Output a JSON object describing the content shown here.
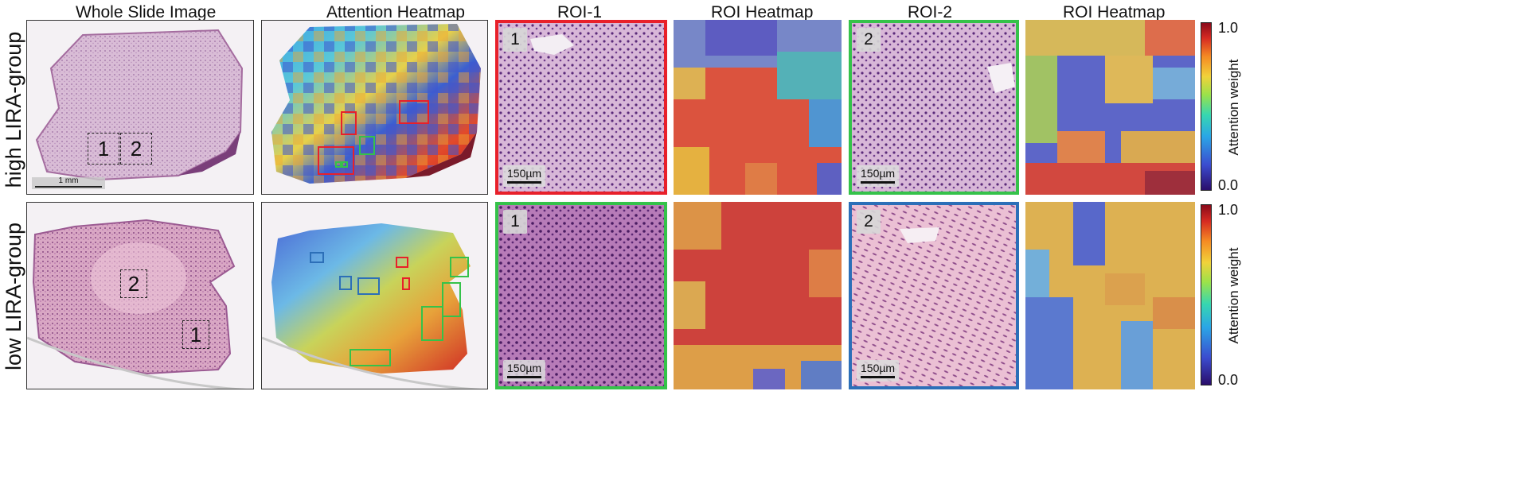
{
  "columns": [
    "Whole Slide Image",
    "Attention Heatmap",
    "ROI-1",
    "ROI Heatmap",
    "ROI-2",
    "ROI Heatmap"
  ],
  "rows": [
    {
      "label": "high LIRA-group",
      "wsi_scale": "1 mm",
      "roi1_num": "1",
      "roi2_num": "2",
      "roi1_scale": "150µm",
      "roi2_scale": "150µm",
      "box1": "1",
      "box2": "2"
    },
    {
      "label": "low LIRA-group",
      "roi1_num": "1",
      "roi2_num": "2",
      "roi1_scale": "150µm",
      "roi2_scale": "150µm",
      "box1": "1",
      "box2": "2"
    }
  ],
  "colorbar": {
    "max": "1.0",
    "min": "0.0",
    "label": "Attention weight"
  },
  "colors": {
    "roi_red": "#e8202a",
    "roi_green": "#35c24a",
    "roi_blue": "#2c6fb8"
  }
}
